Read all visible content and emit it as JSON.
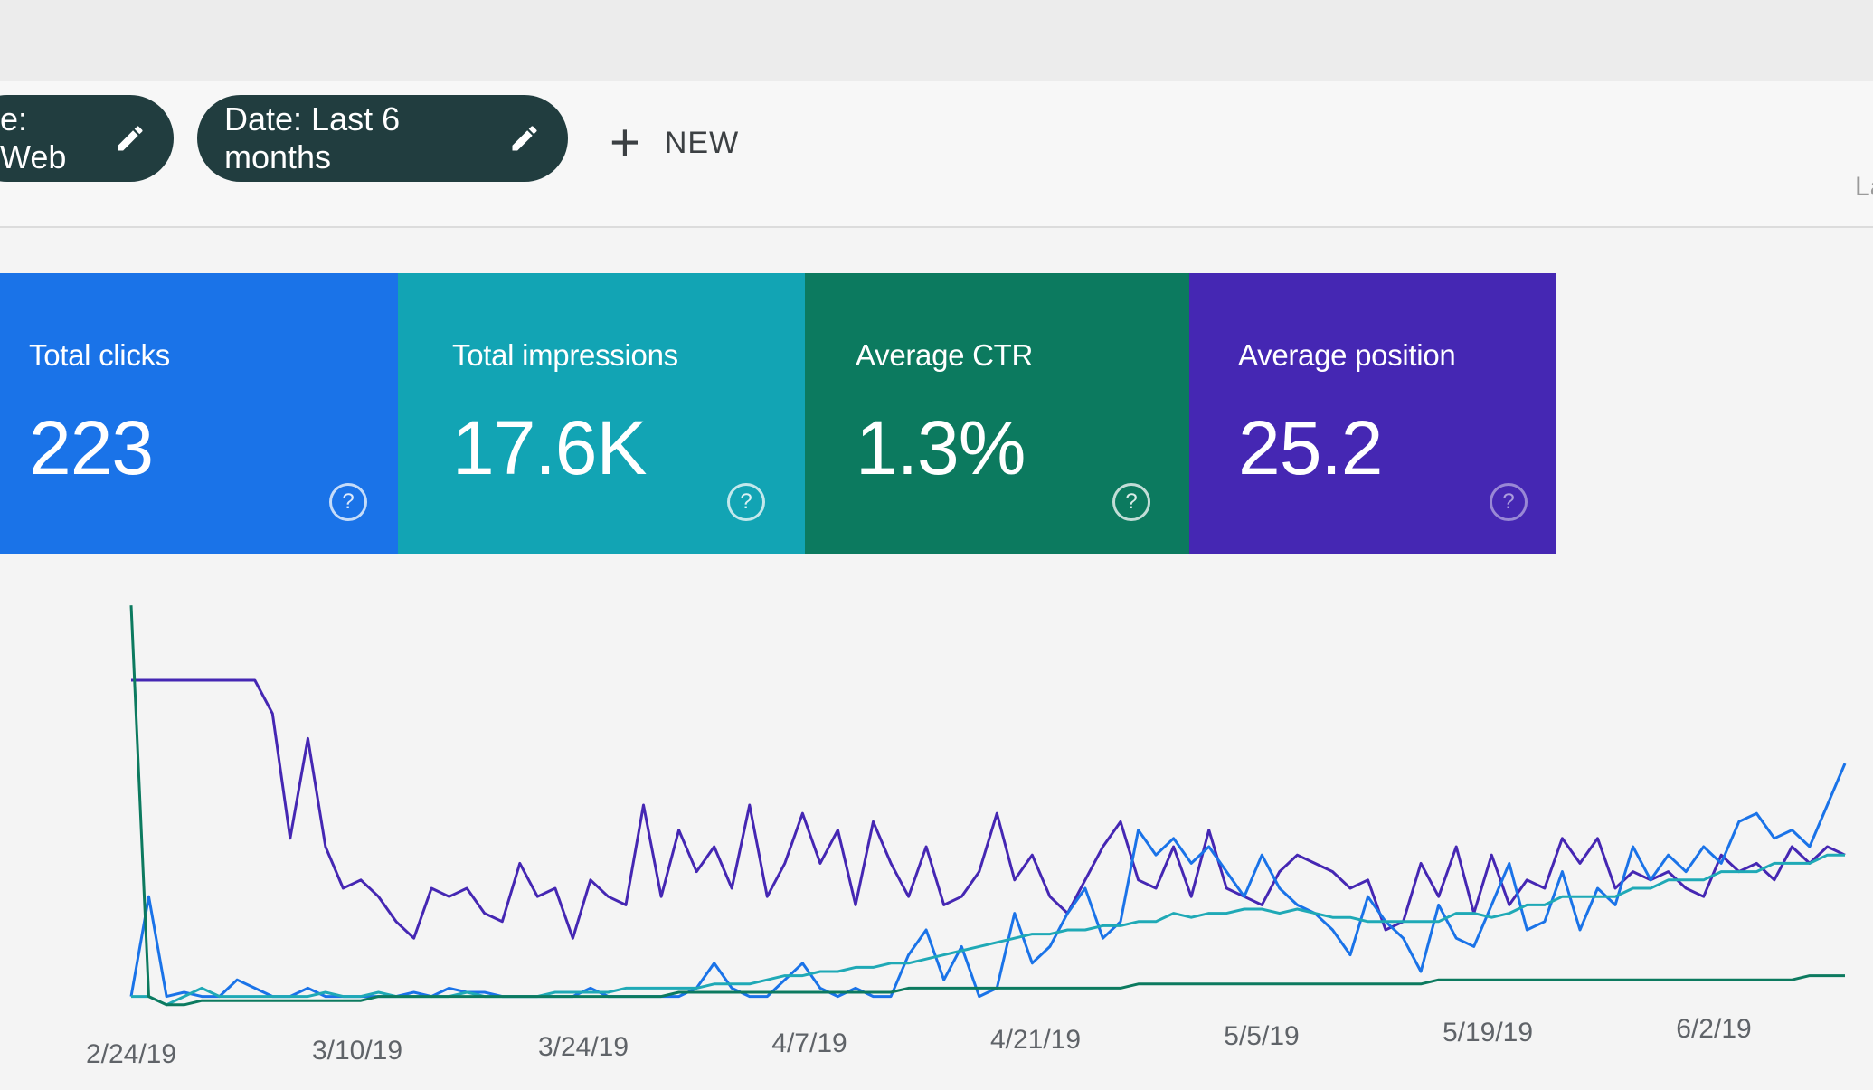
{
  "filters": {
    "type_chip_label": "e: Web",
    "date_chip_label": "Date: Last 6 months",
    "new_label": "NEW",
    "new_plus": "+",
    "right_edge_text": "La"
  },
  "metrics": [
    {
      "label": "Total clicks",
      "value": "223",
      "help": "?",
      "color": "#1a73e8"
    },
    {
      "label": "Total impressions",
      "value": "17.6K",
      "help": "?",
      "color": "#12a4b4"
    },
    {
      "label": "Average CTR",
      "value": "1.3%",
      "help": "?",
      "color": "#0c7a5f"
    },
    {
      "label": "Average position",
      "value": "25.2",
      "help": "?",
      "color": "#4527b3"
    }
  ],
  "chart_data": {
    "type": "line",
    "x_tick_labels": [
      "2/24/19",
      "3/10/19",
      "3/24/19",
      "4/7/19",
      "4/21/19",
      "5/5/19",
      "5/19/19",
      "6/2/19"
    ],
    "grid": false,
    "series": [
      {
        "color": "#4527b3",
        "values": [
          80,
          80,
          80,
          80,
          80,
          80,
          80,
          80,
          72,
          42,
          66,
          40,
          30,
          32,
          28,
          22,
          18,
          30,
          28,
          30,
          24,
          22,
          36,
          28,
          30,
          18,
          32,
          28,
          26,
          50,
          28,
          44,
          34,
          40,
          30,
          50,
          28,
          36,
          48,
          36,
          44,
          26,
          46,
          36,
          28,
          40,
          26,
          28,
          34,
          48,
          32,
          38,
          28,
          24,
          32,
          40,
          46,
          32,
          30,
          40,
          28,
          44,
          30,
          28,
          26,
          34,
          38,
          36,
          34,
          30,
          32,
          20,
          22,
          36,
          28,
          40,
          24,
          38,
          26,
          32,
          30,
          42,
          36,
          42,
          30,
          34,
          32,
          34,
          30,
          28,
          38,
          34,
          36,
          32,
          40,
          36,
          40,
          38
        ]
      },
      {
        "color": "#1a73e8",
        "values": [
          4,
          28,
          4,
          5,
          4,
          4,
          8,
          6,
          4,
          4,
          6,
          4,
          4,
          4,
          4,
          4,
          5,
          4,
          6,
          5,
          5,
          4,
          4,
          4,
          4,
          4,
          6,
          4,
          4,
          4,
          4,
          4,
          6,
          12,
          6,
          4,
          4,
          8,
          12,
          6,
          4,
          6,
          4,
          4,
          14,
          20,
          8,
          16,
          4,
          6,
          24,
          12,
          16,
          24,
          30,
          18,
          22,
          44,
          38,
          42,
          36,
          40,
          34,
          28,
          38,
          30,
          26,
          24,
          20,
          14,
          28,
          22,
          18,
          10,
          26,
          18,
          16,
          26,
          36,
          20,
          22,
          34,
          20,
          30,
          26,
          40,
          32,
          38,
          34,
          40,
          36,
          46,
          48,
          42,
          44,
          40,
          50,
          60
        ]
      },
      {
        "color": "#1fa9b6",
        "values": [
          4,
          4,
          2,
          4,
          6,
          4,
          4,
          4,
          4,
          4,
          4,
          5,
          4,
          4,
          5,
          4,
          4,
          4,
          4,
          5,
          4,
          4,
          4,
          4,
          5,
          5,
          5,
          5,
          6,
          6,
          6,
          6,
          6,
          7,
          7,
          7,
          8,
          9,
          9,
          10,
          10,
          11,
          11,
          12,
          12,
          13,
          14,
          15,
          16,
          17,
          18,
          19,
          19,
          20,
          20,
          21,
          21,
          22,
          22,
          24,
          23,
          24,
          24,
          25,
          25,
          24,
          25,
          24,
          23,
          23,
          22,
          22,
          22,
          22,
          22,
          24,
          24,
          23,
          24,
          26,
          26,
          28,
          28,
          28,
          28,
          30,
          30,
          32,
          32,
          32,
          34,
          34,
          34,
          36,
          36,
          36,
          38,
          38
        ]
      },
      {
        "color": "#0c7a5f",
        "values": [
          98,
          4,
          2,
          2,
          3,
          3,
          3,
          3,
          3,
          3,
          3,
          3,
          3,
          3,
          4,
          4,
          4,
          4,
          4,
          4,
          4,
          4,
          4,
          4,
          4,
          4,
          4,
          4,
          4,
          4,
          4,
          5,
          5,
          5,
          5,
          5,
          5,
          5,
          5,
          5,
          5,
          5,
          5,
          5,
          6,
          6,
          6,
          6,
          6,
          6,
          6,
          6,
          6,
          6,
          6,
          6,
          6,
          7,
          7,
          7,
          7,
          7,
          7,
          7,
          7,
          7,
          7,
          7,
          7,
          7,
          7,
          7,
          7,
          7,
          8,
          8,
          8,
          8,
          8,
          8,
          8,
          8,
          8,
          8,
          8,
          8,
          8,
          8,
          8,
          8,
          8,
          8,
          8,
          8,
          8,
          9,
          9,
          9
        ]
      }
    ]
  }
}
